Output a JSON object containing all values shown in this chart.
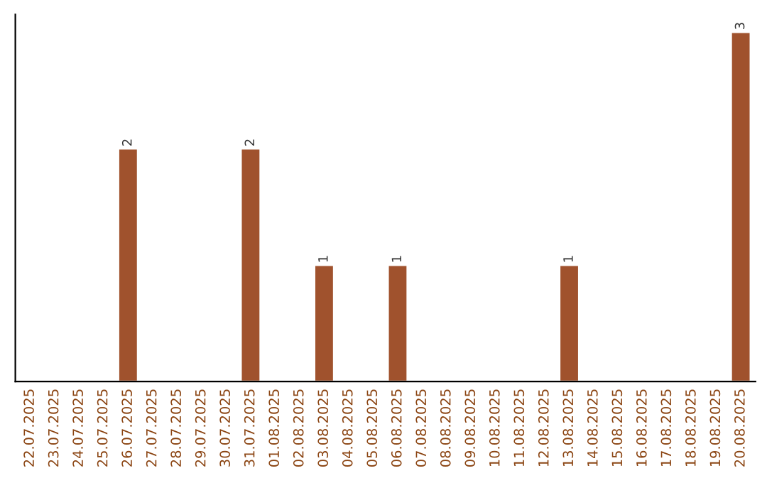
{
  "chart_data": {
    "type": "bar",
    "categories": [
      "22.07.2025",
      "23.07.2025",
      "24.07.2025",
      "25.07.2025",
      "26.07.2025",
      "27.07.2025",
      "28.07.2025",
      "29.07.2025",
      "30.07.2025",
      "31.07.2025",
      "01.08.2025",
      "02.08.2025",
      "03.08.2025",
      "04.08.2025",
      "05.08.2025",
      "06.08.2025",
      "07.08.2025",
      "08.08.2025",
      "09.08.2025",
      "10.08.2025",
      "11.08.2025",
      "12.08.2025",
      "13.08.2025",
      "14.08.2025",
      "15.08.2025",
      "16.08.2025",
      "17.08.2025",
      "18.08.2025",
      "19.08.2025",
      "20.08.2025"
    ],
    "values": [
      null,
      null,
      null,
      null,
      2,
      null,
      null,
      null,
      null,
      2,
      null,
      null,
      1,
      null,
      null,
      1,
      null,
      null,
      null,
      null,
      null,
      null,
      1,
      null,
      null,
      null,
      null,
      null,
      null,
      3
    ],
    "value_labels": [
      null,
      null,
      null,
      null,
      "2",
      null,
      null,
      null,
      null,
      "2",
      null,
      null,
      "1",
      null,
      null,
      "1",
      null,
      null,
      null,
      null,
      null,
      null,
      "1",
      null,
      null,
      null,
      null,
      null,
      null,
      "3"
    ],
    "color": "#a0522d",
    "tick_labels": "x",
    "grid": false,
    "legend": false
  }
}
